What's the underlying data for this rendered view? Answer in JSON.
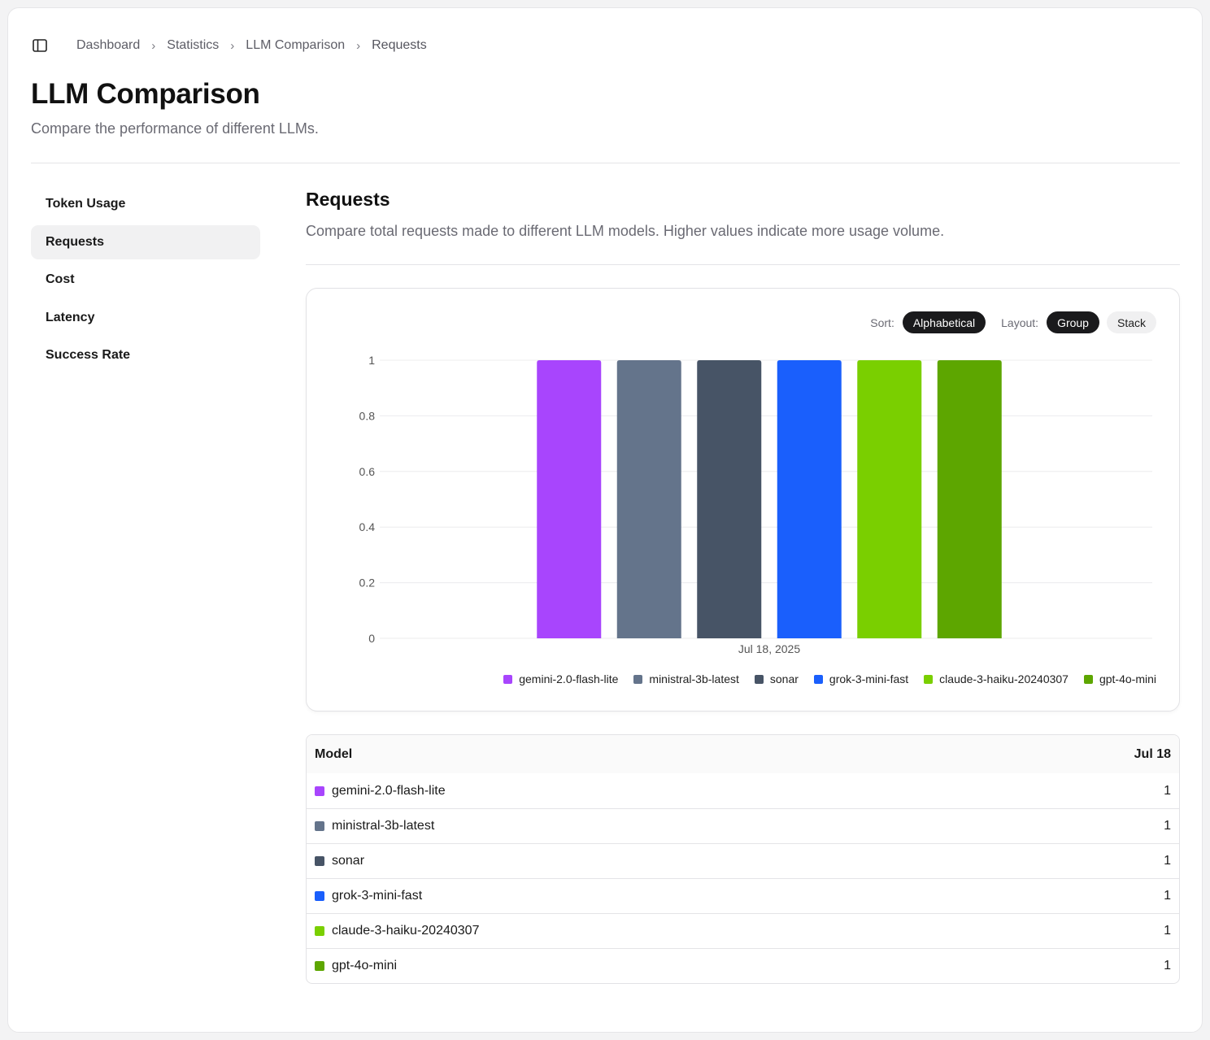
{
  "breadcrumb": [
    "Dashboard",
    "Statistics",
    "LLM Comparison",
    "Requests"
  ],
  "page": {
    "title": "LLM Comparison",
    "subtitle": "Compare the performance of different LLMs."
  },
  "sidebar": {
    "items": [
      {
        "label": "Token Usage",
        "active": false
      },
      {
        "label": "Requests",
        "active": true
      },
      {
        "label": "Cost",
        "active": false
      },
      {
        "label": "Latency",
        "active": false
      },
      {
        "label": "Success Rate",
        "active": false
      }
    ]
  },
  "section": {
    "title": "Requests",
    "description": "Compare total requests made to different LLM models. Higher values indicate more usage volume."
  },
  "controls": {
    "sort_label": "Sort:",
    "sort_value": "Alphabetical",
    "layout_label": "Layout:",
    "layout_group": "Group",
    "layout_stack": "Stack"
  },
  "chart_data": {
    "type": "bar",
    "categories": [
      "Jul 18, 2025"
    ],
    "series": [
      {
        "name": "gemini-2.0-flash-lite",
        "color": "#a845fd",
        "values": [
          1
        ]
      },
      {
        "name": "ministral-3b-latest",
        "color": "#64748b",
        "values": [
          1
        ]
      },
      {
        "name": "sonar",
        "color": "#475466",
        "values": [
          1
        ]
      },
      {
        "name": "grok-3-mini-fast",
        "color": "#1a5ffc",
        "values": [
          1
        ]
      },
      {
        "name": "claude-3-haiku-20240307",
        "color": "#7acf00",
        "values": [
          1
        ]
      },
      {
        "name": "gpt-4o-mini",
        "color": "#5da600",
        "values": [
          1
        ]
      }
    ],
    "yticks": [
      "0",
      "0.2",
      "0.4",
      "0.6",
      "0.8",
      "1"
    ],
    "ylim": [
      0,
      1
    ],
    "grid": true,
    "legend": "bottom"
  },
  "table": {
    "header_model": "Model",
    "header_date": "Jul 18",
    "rows": [
      {
        "model": "gemini-2.0-flash-lite",
        "color": "#a845fd",
        "value": "1"
      },
      {
        "model": "ministral-3b-latest",
        "color": "#64748b",
        "value": "1"
      },
      {
        "model": "sonar",
        "color": "#475466",
        "value": "1"
      },
      {
        "model": "grok-3-mini-fast",
        "color": "#1a5ffc",
        "value": "1"
      },
      {
        "model": "claude-3-haiku-20240307",
        "color": "#7acf00",
        "value": "1"
      },
      {
        "model": "gpt-4o-mini",
        "color": "#5da600",
        "value": "1"
      }
    ]
  }
}
